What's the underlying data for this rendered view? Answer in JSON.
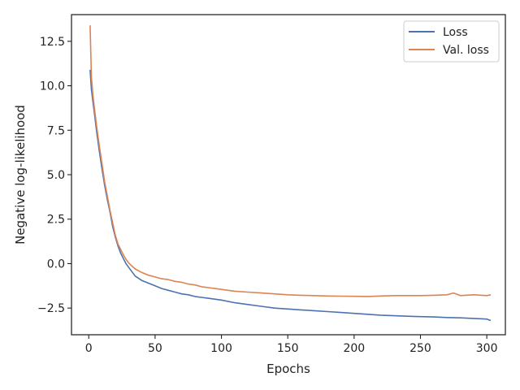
{
  "chart_data": {
    "type": "line",
    "title": "",
    "xlabel": "Epochs",
    "ylabel": "Negative log-likelihood",
    "xlim": [
      -13,
      314
    ],
    "ylim": [
      -4.0,
      14.0
    ],
    "xticks": [
      0,
      50,
      100,
      150,
      200,
      250,
      300
    ],
    "yticks": [
      -2.5,
      0.0,
      2.5,
      5.0,
      7.5,
      10.0,
      12.5
    ],
    "xtick_labels": [
      "0",
      "50",
      "100",
      "150",
      "200",
      "250",
      "300"
    ],
    "ytick_labels": [
      "−2.5",
      "0.0",
      "2.5",
      "5.0",
      "7.5",
      "10.0",
      "12.5"
    ],
    "grid": false,
    "legend_position": "top-right",
    "series": [
      {
        "name": "Loss",
        "color": "#4c72b0",
        "x": [
          1,
          2,
          3,
          4,
          5,
          6,
          8,
          10,
          12,
          14,
          16,
          18,
          20,
          22,
          24,
          26,
          28,
          30,
          32,
          35,
          40,
          45,
          50,
          55,
          60,
          65,
          70,
          75,
          80,
          85,
          90,
          95,
          100,
          110,
          120,
          130,
          140,
          150,
          160,
          170,
          180,
          190,
          200,
          210,
          220,
          230,
          240,
          250,
          260,
          270,
          280,
          290,
          300,
          303
        ],
        "y": [
          10.9,
          9.8,
          9.2,
          8.6,
          8.0,
          7.4,
          6.3,
          5.3,
          4.4,
          3.6,
          2.9,
          2.1,
          1.5,
          1.0,
          0.6,
          0.3,
          0.0,
          -0.2,
          -0.4,
          -0.7,
          -0.95,
          -1.1,
          -1.25,
          -1.4,
          -1.5,
          -1.6,
          -1.7,
          -1.75,
          -1.85,
          -1.9,
          -1.95,
          -2.0,
          -2.05,
          -2.2,
          -2.3,
          -2.4,
          -2.5,
          -2.55,
          -2.6,
          -2.65,
          -2.7,
          -2.75,
          -2.8,
          -2.85,
          -2.9,
          -2.93,
          -2.96,
          -2.98,
          -3.0,
          -3.03,
          -3.05,
          -3.08,
          -3.12,
          -3.2
        ]
      },
      {
        "name": "Val. loss",
        "color": "#dd8452",
        "x": [
          1,
          2,
          3,
          4,
          5,
          6,
          8,
          10,
          12,
          14,
          16,
          18,
          20,
          22,
          24,
          26,
          28,
          30,
          32,
          35,
          40,
          45,
          50,
          55,
          60,
          65,
          70,
          75,
          80,
          85,
          90,
          95,
          100,
          110,
          120,
          130,
          140,
          150,
          160,
          170,
          180,
          190,
          200,
          210,
          220,
          230,
          240,
          250,
          260,
          270,
          275,
          280,
          290,
          300,
          303
        ],
        "y": [
          13.4,
          10.5,
          9.6,
          8.9,
          8.3,
          7.7,
          6.6,
          5.6,
          4.6,
          3.8,
          3.0,
          2.3,
          1.6,
          1.1,
          0.8,
          0.5,
          0.25,
          0.05,
          -0.1,
          -0.3,
          -0.5,
          -0.65,
          -0.75,
          -0.85,
          -0.9,
          -1.0,
          -1.05,
          -1.15,
          -1.2,
          -1.3,
          -1.35,
          -1.4,
          -1.45,
          -1.55,
          -1.6,
          -1.65,
          -1.7,
          -1.75,
          -1.78,
          -1.8,
          -1.82,
          -1.83,
          -1.84,
          -1.85,
          -1.82,
          -1.8,
          -1.8,
          -1.8,
          -1.78,
          -1.75,
          -1.65,
          -1.8,
          -1.75,
          -1.8,
          -1.75
        ]
      }
    ]
  }
}
